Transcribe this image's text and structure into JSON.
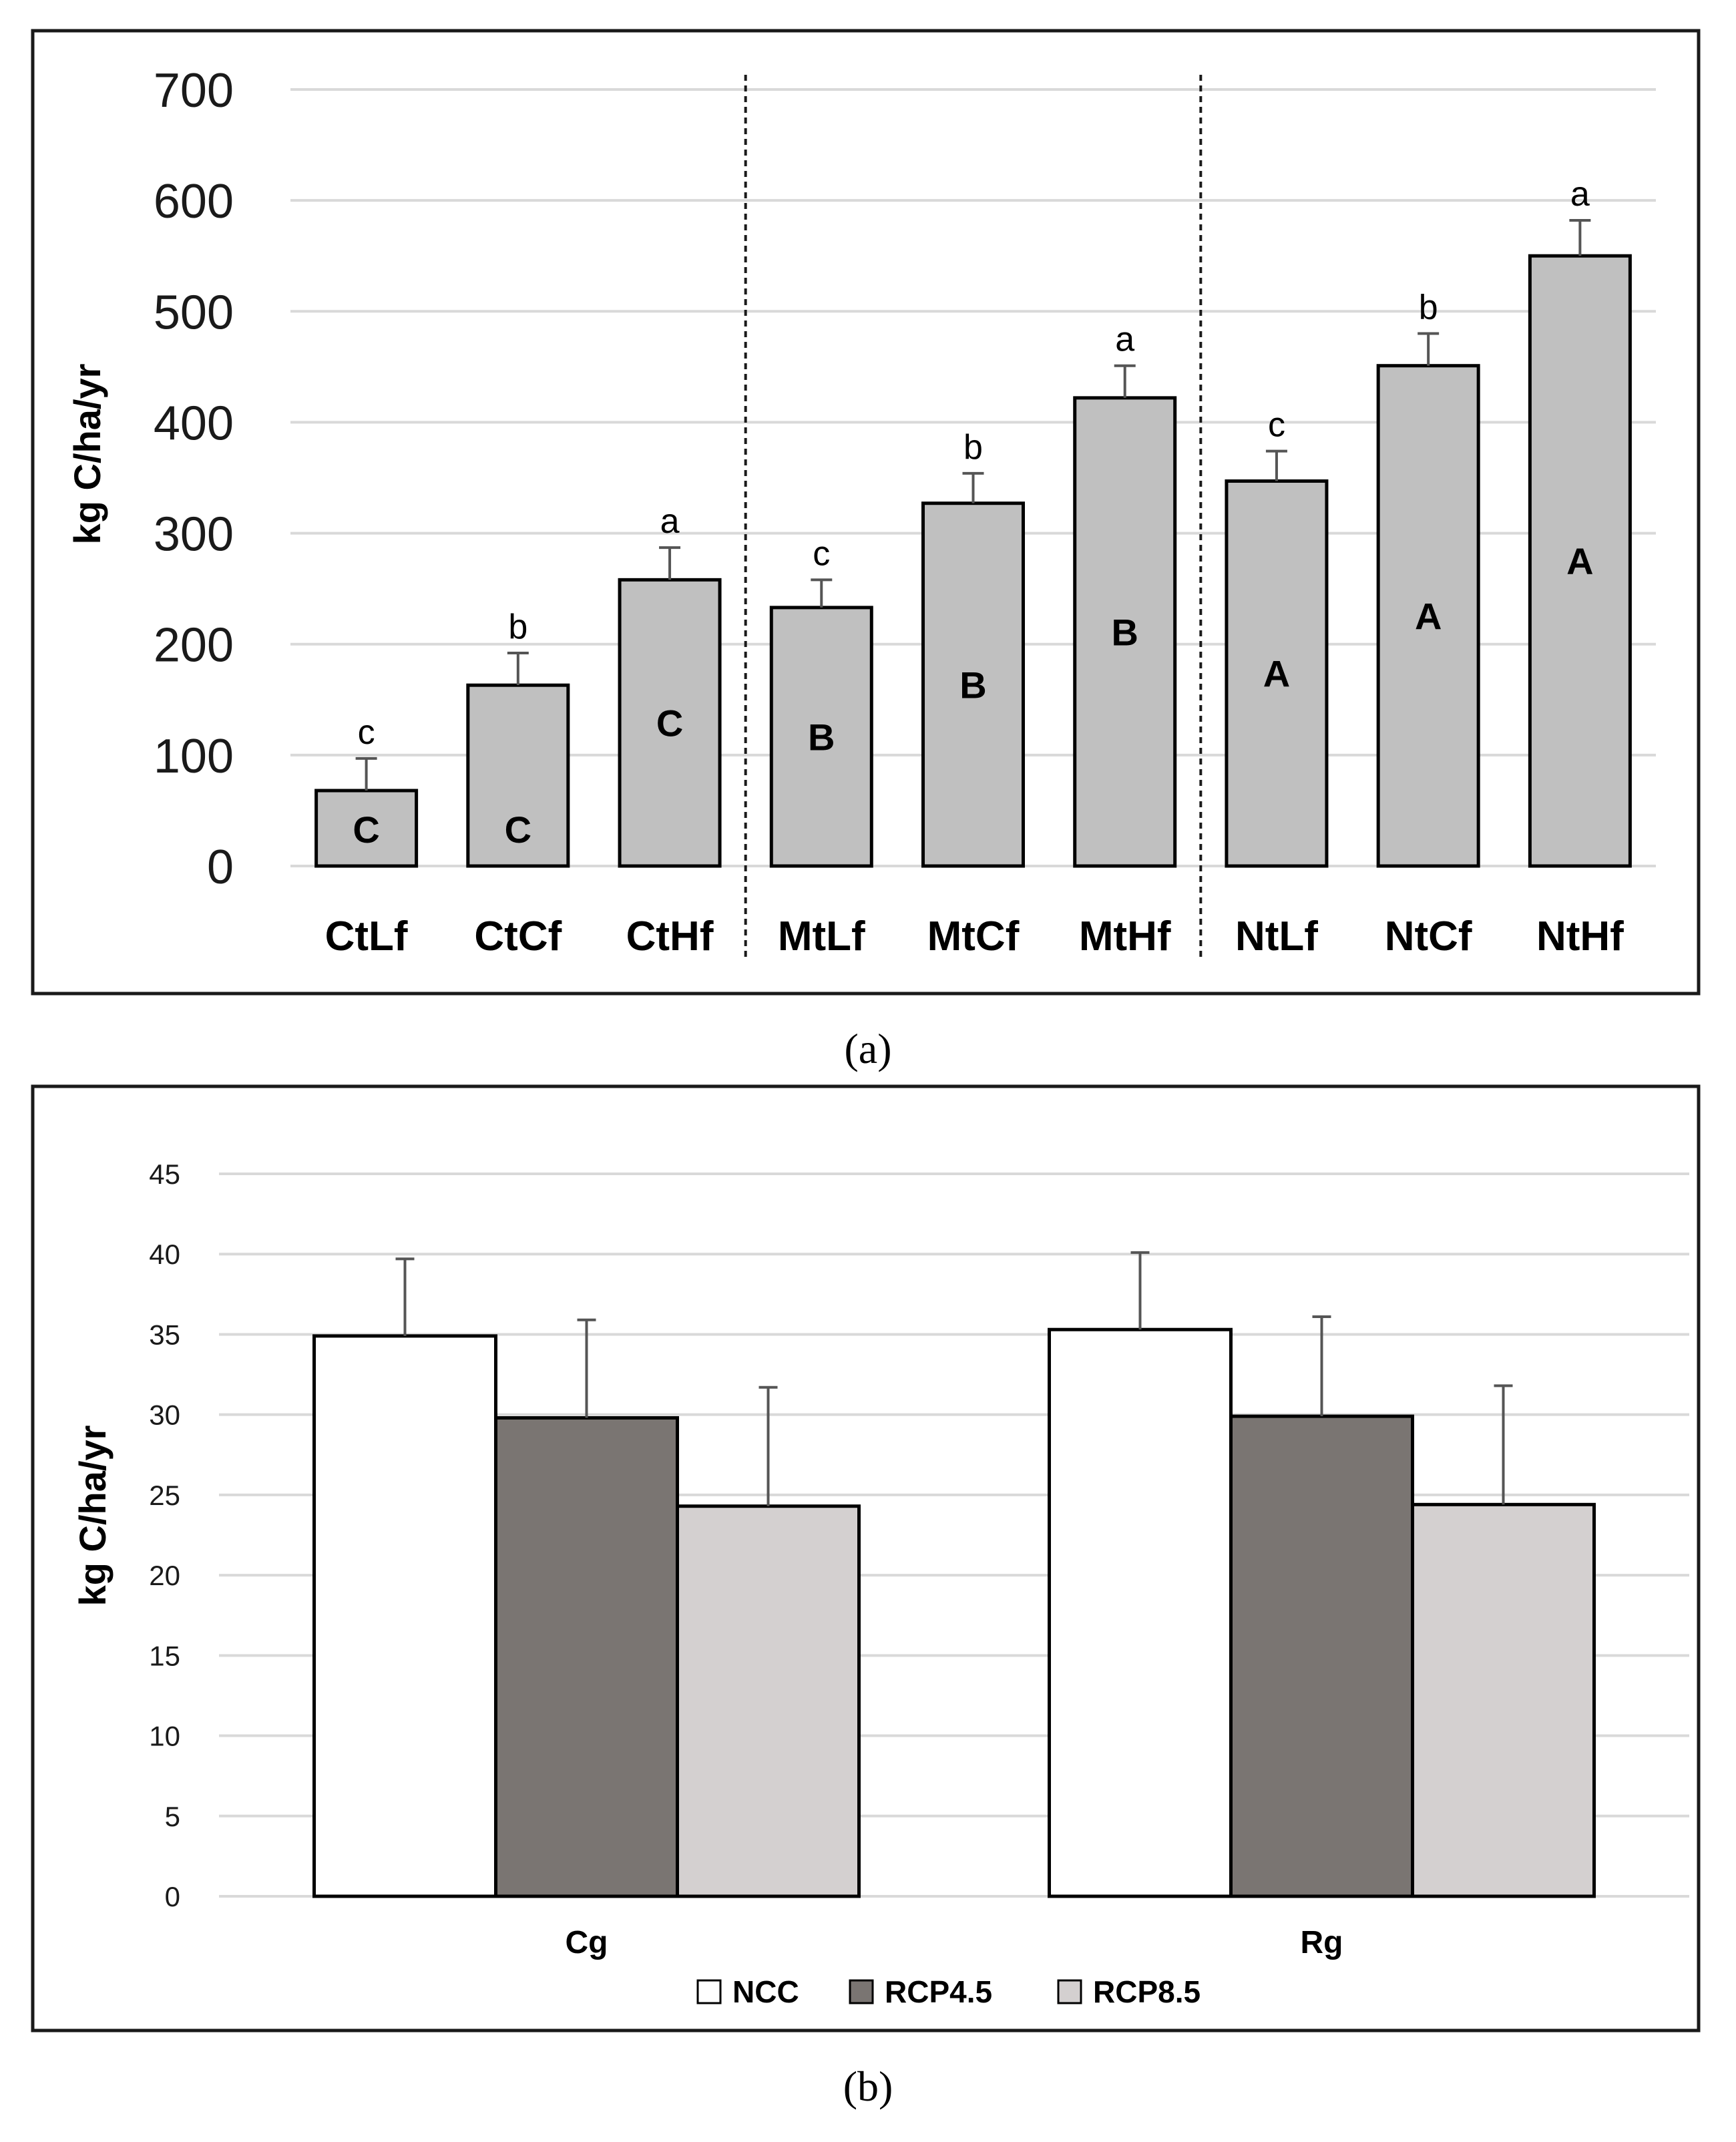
{
  "chart_data": [
    {
      "type": "bar",
      "panel_label": "(a)",
      "title": "",
      "xlabel": "",
      "ylabel": "kg C/ha/yr",
      "ylim": [
        0,
        700
      ],
      "yticks": [
        0,
        100,
        200,
        300,
        400,
        500,
        600,
        700
      ],
      "categories": [
        "CtLf",
        "CtCf",
        "CtHf",
        "MtLf",
        "MtCf",
        "MtHf",
        "NtLf",
        "NtCf",
        "NtHf"
      ],
      "values": [
        68,
        163,
        258,
        233,
        327,
        422,
        347,
        451,
        550
      ],
      "error_upper": [
        97,
        192,
        287,
        258,
        354,
        451,
        374,
        480,
        582
      ],
      "significance_lower": [
        "c",
        "b",
        "a",
        "c",
        "b",
        "a",
        "c",
        "b",
        "a"
      ],
      "significance_upper": [
        "C",
        "C",
        "C",
        "B",
        "B",
        "B",
        "A",
        "A",
        "A"
      ],
      "group_separators_after": [
        2,
        5
      ],
      "bar_color": "#c0c0c0",
      "grid": true
    },
    {
      "type": "bar",
      "panel_label": "(b)",
      "title": "",
      "xlabel": "",
      "ylabel": "kg C/ha/yr",
      "ylim": [
        0,
        45
      ],
      "yticks": [
        0,
        5,
        10,
        15,
        20,
        25,
        30,
        35,
        40,
        45
      ],
      "categories": [
        "Cg",
        "Rg"
      ],
      "series": [
        {
          "name": "NCC",
          "values": [
            34.9,
            35.3
          ],
          "error_upper": [
            39.7,
            40.1
          ],
          "color": "#ffffff"
        },
        {
          "name": "RCP4.5",
          "values": [
            29.8,
            29.9
          ],
          "error_upper": [
            35.9,
            36.1
          ],
          "color": "#7a7572"
        },
        {
          "name": "RCP8.5",
          "values": [
            24.3,
            24.4
          ],
          "error_upper": [
            31.7,
            31.8
          ],
          "color": "#d4d0d0"
        }
      ],
      "legend_position": "bottom-center",
      "grid": true
    }
  ]
}
